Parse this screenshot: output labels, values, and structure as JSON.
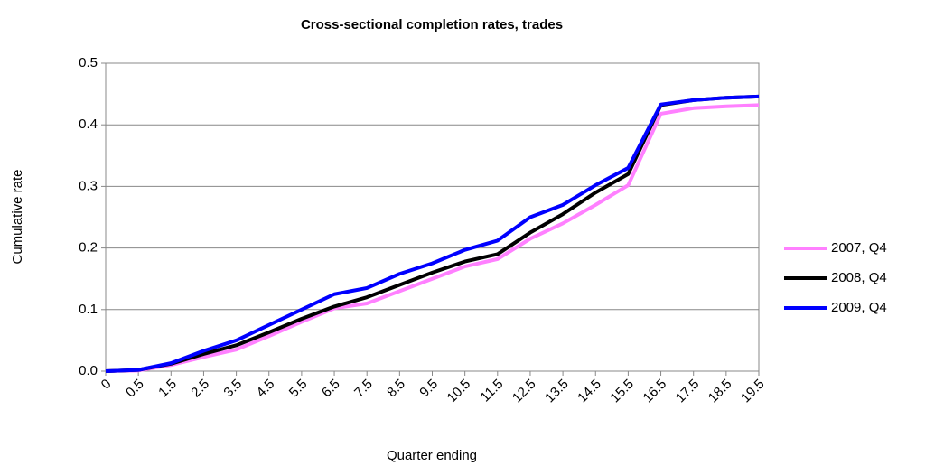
{
  "chart_data": {
    "type": "line",
    "title": "Cross-sectional completion rates, trades",
    "x_label": "Quarter ending",
    "y_label": "Cumulative rate",
    "categories": [
      "0",
      "0.5",
      "1.5",
      "2.5",
      "3.5",
      "4.5",
      "5.5",
      "6.5",
      "7.5",
      "8.5",
      "9.5",
      "10.5",
      "11.5",
      "12.5",
      "13.5",
      "14.5",
      "15.5",
      "16.5",
      "17.5",
      "18.5",
      "19.5"
    ],
    "series": [
      {
        "name": "2007, Q4",
        "color": "#ff80ff",
        "values": [
          0,
          0.001,
          0.01,
          0.023,
          0.035,
          0.057,
          0.08,
          0.102,
          0.11,
          0.13,
          0.15,
          0.17,
          0.182,
          0.215,
          0.24,
          0.27,
          0.302,
          0.418,
          0.427,
          0.43,
          0.432
        ]
      },
      {
        "name": "2008, Q4",
        "color": "#000000",
        "values": [
          0,
          0.002,
          0.012,
          0.028,
          0.042,
          0.063,
          0.085,
          0.105,
          0.12,
          0.14,
          0.16,
          0.178,
          0.19,
          0.225,
          0.255,
          0.29,
          0.32,
          0.432,
          0.44,
          0.444,
          0.446
        ]
      },
      {
        "name": "2009, Q4",
        "color": "#0000ff",
        "values": [
          0,
          0.002,
          0.013,
          0.033,
          0.05,
          0.075,
          0.1,
          0.125,
          0.135,
          0.158,
          0.175,
          0.197,
          0.212,
          0.25,
          0.27,
          0.302,
          0.33,
          0.433,
          0.44,
          0.444,
          0.446
        ]
      }
    ],
    "ylim": [
      0,
      0.5
    ],
    "yticks": [
      {
        "value": 0,
        "label": "0.0"
      },
      0.1,
      0.2,
      0.3,
      0.4,
      0.5
    ],
    "grid": true,
    "legend": "right"
  }
}
